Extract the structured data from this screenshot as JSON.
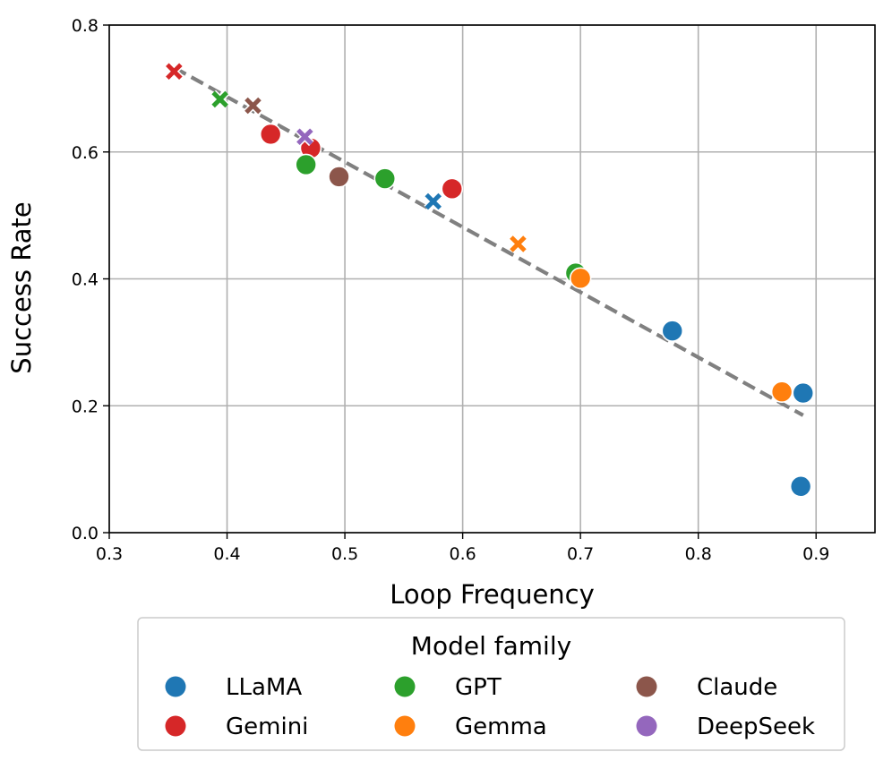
{
  "chart_data": {
    "type": "scatter",
    "xlabel": "Loop Frequency",
    "ylabel": "Success Rate",
    "xlim": [
      0.3,
      0.95
    ],
    "ylim": [
      0.0,
      0.8
    ],
    "x_ticks": [
      "0.3",
      "0.4",
      "0.5",
      "0.6",
      "0.7",
      "0.8",
      "0.9"
    ],
    "y_ticks": [
      "0.0",
      "0.2",
      "0.4",
      "0.6",
      "0.8"
    ],
    "grid": true,
    "legend": {
      "title": "Model family",
      "placement": "below"
    },
    "series": [
      {
        "name": "LLaMA",
        "color": "#1f77b4",
        "points": [
          {
            "x": 0.575,
            "y": 0.522,
            "marker": "x"
          },
          {
            "x": 0.778,
            "y": 0.318,
            "marker": "o"
          },
          {
            "x": 0.889,
            "y": 0.22,
            "marker": "o"
          },
          {
            "x": 0.887,
            "y": 0.073,
            "marker": "o"
          }
        ]
      },
      {
        "name": "Gemini",
        "color": "#d62728",
        "points": [
          {
            "x": 0.355,
            "y": 0.727,
            "marker": "x"
          },
          {
            "x": 0.437,
            "y": 0.628,
            "marker": "o"
          },
          {
            "x": 0.471,
            "y": 0.606,
            "marker": "o"
          },
          {
            "x": 0.591,
            "y": 0.542,
            "marker": "o"
          }
        ]
      },
      {
        "name": "GPT",
        "color": "#2ca02c",
        "points": [
          {
            "x": 0.394,
            "y": 0.683,
            "marker": "x"
          },
          {
            "x": 0.467,
            "y": 0.58,
            "marker": "o"
          },
          {
            "x": 0.534,
            "y": 0.558,
            "marker": "o"
          },
          {
            "x": 0.696,
            "y": 0.409,
            "marker": "o"
          }
        ]
      },
      {
        "name": "Gemma",
        "color": "#ff7f0e",
        "points": [
          {
            "x": 0.647,
            "y": 0.455,
            "marker": "x"
          },
          {
            "x": 0.7,
            "y": 0.401,
            "marker": "o"
          },
          {
            "x": 0.871,
            "y": 0.222,
            "marker": "o"
          }
        ]
      },
      {
        "name": "Claude",
        "color": "#8c564b",
        "points": [
          {
            "x": 0.422,
            "y": 0.673,
            "marker": "x"
          },
          {
            "x": 0.495,
            "y": 0.561,
            "marker": "o"
          }
        ]
      },
      {
        "name": "DeepSeek",
        "color": "#9467bd",
        "points": [
          {
            "x": 0.466,
            "y": 0.624,
            "marker": "x"
          }
        ]
      }
    ],
    "trend_line": {
      "style": "dashed",
      "color": "#808080",
      "from": {
        "x": 0.355,
        "y": 0.733
      },
      "to": {
        "x": 0.889,
        "y": 0.185
      }
    }
  }
}
